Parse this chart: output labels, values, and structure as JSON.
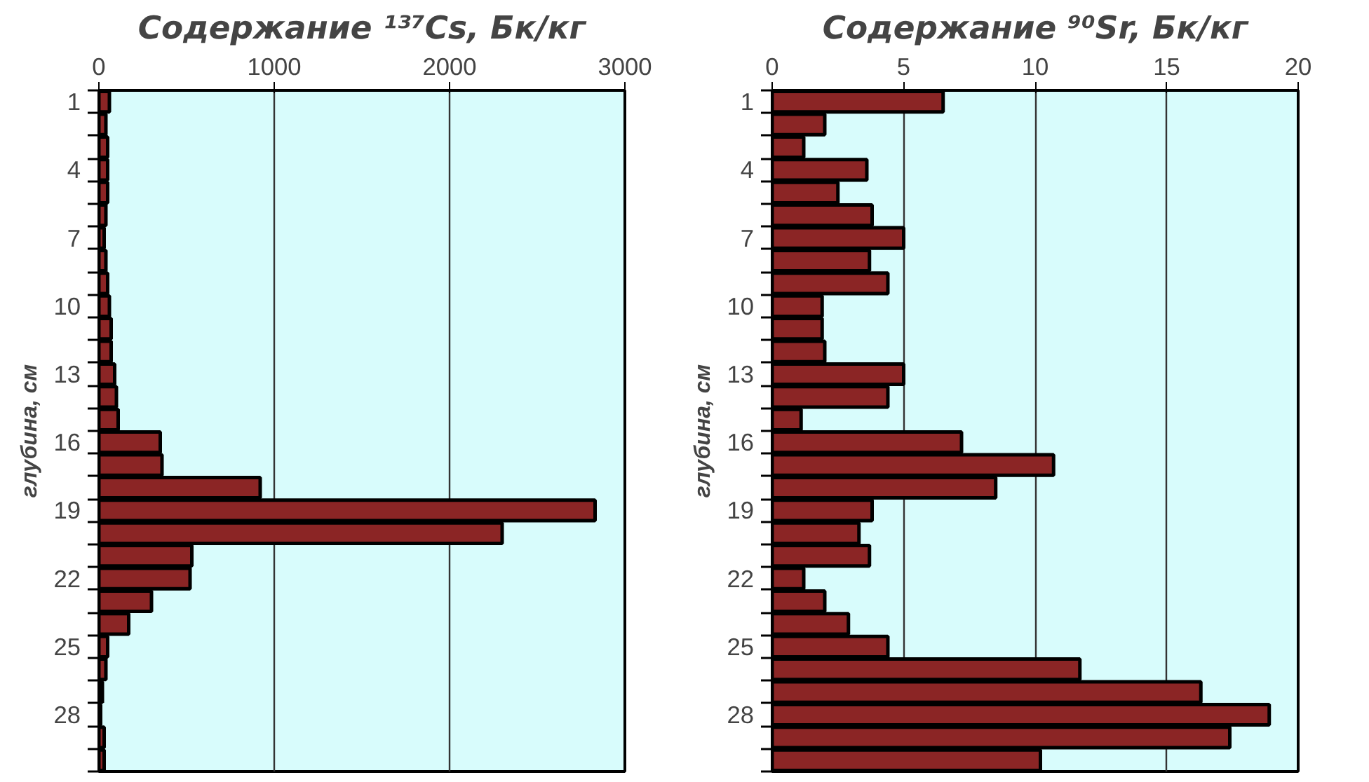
{
  "chart_data": [
    {
      "type": "bar",
      "orientation": "horizontal",
      "title": "Содержание ¹³⁷Cs, Бк/кг",
      "ylabel": "глубина, см",
      "categories": [
        "1",
        null,
        null,
        "4",
        null,
        null,
        "7",
        null,
        null,
        "10",
        null,
        null,
        "13",
        null,
        null,
        "16",
        null,
        null,
        "19",
        null,
        null,
        "22",
        null,
        null,
        "25",
        null,
        null,
        "28",
        null,
        null
      ],
      "values": [
        60,
        40,
        50,
        50,
        50,
        40,
        30,
        40,
        50,
        60,
        70,
        70,
        90,
        100,
        110,
        350,
        360,
        920,
        2830,
        2300,
        530,
        520,
        300,
        170,
        50,
        40,
        20,
        10,
        30,
        30
      ],
      "color": "#8b2525",
      "xlim": [
        0,
        3000
      ],
      "xticks": [
        0,
        1000,
        2000,
        3000
      ],
      "grid": "x"
    },
    {
      "type": "bar",
      "orientation": "horizontal",
      "title": "Содержание ⁹⁰Sr, Бк/кг",
      "ylabel": "глубина, см",
      "categories": [
        "1",
        null,
        null,
        "4",
        null,
        null,
        "7",
        null,
        null,
        "10",
        null,
        null,
        "13",
        null,
        null,
        "16",
        null,
        null,
        "19",
        null,
        null,
        "22",
        null,
        null,
        "25",
        null,
        null,
        "28",
        null,
        null
      ],
      "values": [
        6.5,
        2.0,
        1.2,
        3.6,
        2.5,
        3.8,
        5.0,
        3.7,
        4.4,
        1.9,
        1.9,
        2.0,
        5.0,
        4.4,
        1.1,
        7.2,
        10.7,
        8.5,
        3.8,
        3.3,
        3.7,
        1.2,
        2.0,
        2.9,
        4.4,
        11.7,
        16.3,
        18.9,
        17.4,
        10.2
      ],
      "color": "#8b2525",
      "xlim": [
        0,
        20
      ],
      "xticks": [
        0,
        5,
        10,
        15,
        20
      ],
      "grid": "x"
    }
  ]
}
